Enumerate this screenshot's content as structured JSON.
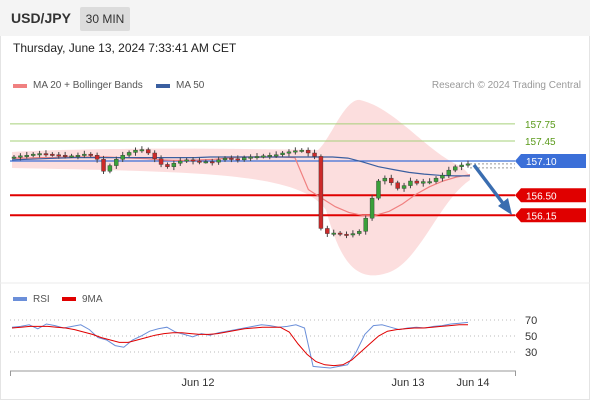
{
  "header": {
    "symbol": "USD/JPY",
    "timeframe": "30 MIN",
    "datetime": "Thursday, June 13, 2024 7:33:41 AM CET"
  },
  "legend": {
    "ma20_label": "MA 20 + Bollinger Bands",
    "ma50_label": "MA 50",
    "credit": "Research © 2024 Trading Central"
  },
  "colors": {
    "ma20": "#f08080",
    "ma50": "#3a5fa0",
    "target_line": "#a6d07a",
    "target_text": "#5a9a1a",
    "current": "#3b6fd8",
    "support": "#e00000",
    "arrow": "#3a6db0",
    "rsi": "#6b8fd9",
    "rsi_ma": "#e00000",
    "band": "#fbd0d0"
  },
  "chart_data": [
    {
      "type": "candlestick",
      "title": "USD/JPY 30 MIN",
      "x_labels": [
        "Jun 12",
        "Jun 13",
        "Jun 14"
      ],
      "y_range": [
        155.9,
        158.0
      ],
      "levels": [
        {
          "label": "157.75",
          "value": 157.75,
          "kind": "target"
        },
        {
          "label": "157.45",
          "value": 157.45,
          "kind": "target"
        },
        {
          "label": "157.10",
          "value": 157.1,
          "kind": "current"
        },
        {
          "label": "156.50",
          "value": 156.5,
          "kind": "support"
        },
        {
          "label": "156.15",
          "value": 156.15,
          "kind": "support"
        }
      ],
      "series": [
        {
          "name": "Price",
          "close": [
            157.17,
            157.19,
            157.2,
            157.22,
            157.23,
            157.22,
            157.21,
            157.2,
            157.19,
            157.19,
            157.2,
            157.22,
            157.2,
            157.13,
            156.92,
            157.02,
            157.13,
            157.2,
            157.25,
            157.29,
            157.3,
            157.24,
            157.14,
            157.04,
            157.0,
            157.06,
            157.1,
            157.12,
            157.1,
            157.09,
            157.09,
            157.08,
            157.12,
            157.15,
            157.14,
            157.12,
            157.16,
            157.17,
            157.18,
            157.19,
            157.2,
            157.21,
            157.24,
            157.26,
            157.28,
            157.29,
            157.24,
            157.18,
            155.92,
            155.83,
            155.84,
            155.82,
            155.81,
            155.83,
            155.87,
            156.1,
            156.45,
            156.75,
            156.8,
            156.72,
            156.62,
            156.67,
            156.75,
            156.71,
            156.74,
            156.74,
            156.8,
            156.85,
            156.94,
            157.0,
            157.03,
            157.05
          ]
        },
        {
          "name": "MA 20",
          "values": [
            157.15,
            157.15,
            157.16,
            157.16,
            157.17,
            157.17,
            157.17,
            157.17,
            157.16,
            157.15,
            157.14,
            157.12,
            157.11,
            157.11,
            157.12,
            157.13,
            157.15,
            157.17,
            157.17,
            157.17,
            157.17,
            157.16,
            156.6,
            156.45,
            156.3,
            156.2,
            156.15,
            156.15,
            156.22,
            156.35,
            156.52,
            156.65,
            156.75,
            156.82,
            156.86
          ]
        },
        {
          "name": "MA 50",
          "values": [
            157.12,
            157.13,
            157.14,
            157.15,
            157.16,
            157.16,
            157.16,
            157.16,
            157.16,
            157.16,
            157.16,
            157.16,
            157.16,
            157.17,
            157.17,
            157.17,
            157.17,
            157.17,
            157.17,
            157.17,
            157.17,
            157.17,
            157.15,
            157.08,
            157.0,
            156.95,
            156.9,
            156.87,
            156.85,
            156.84,
            156.84
          ]
        }
      ]
    },
    {
      "type": "line",
      "title": "RSI",
      "y_ticks": [
        "70",
        "50",
        "30"
      ],
      "y_range": [
        10,
        80
      ],
      "series": [
        {
          "name": "RSI",
          "values": [
            61,
            62,
            64,
            59,
            65,
            63,
            60,
            62,
            64,
            58,
            48,
            45,
            38,
            36,
            45,
            50,
            56,
            59,
            61,
            55,
            52,
            49,
            53,
            51,
            54,
            56,
            58,
            60,
            62,
            64,
            63,
            61,
            62,
            64,
            60,
            12,
            11,
            10,
            12,
            14,
            30,
            52,
            63,
            64,
            61,
            58,
            60,
            61,
            60,
            62,
            63,
            65,
            66,
            67
          ]
        },
        {
          "name": "9MA",
          "values": [
            60,
            61,
            62,
            62,
            62,
            61,
            60,
            58,
            55,
            52,
            48,
            45,
            42,
            42,
            45,
            48,
            51,
            53,
            54,
            54,
            53,
            52,
            52,
            53,
            55,
            57,
            59,
            60,
            61,
            61,
            61,
            55,
            40,
            27,
            18,
            14,
            13,
            14,
            20,
            30,
            40,
            50,
            56,
            58,
            59,
            60,
            60,
            61,
            62,
            63,
            64,
            64
          ]
        }
      ]
    }
  ]
}
